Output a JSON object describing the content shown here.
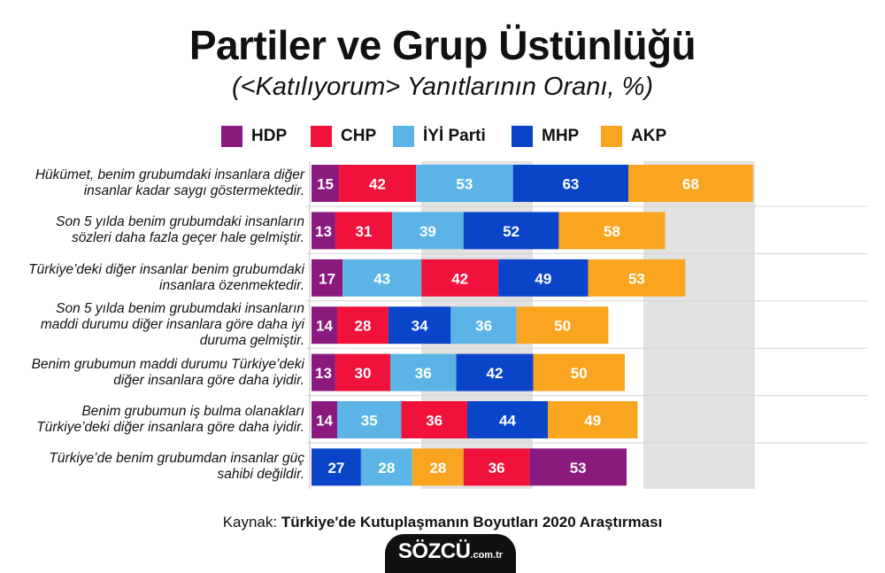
{
  "header": {
    "title": "Partiler ve Grup Üstünlüğü",
    "subtitle": "(<Katılıyorum> Yanıtlarının Oranı, %)"
  },
  "legend": [
    {
      "label": "HDP",
      "color": "#8B1A7E"
    },
    {
      "label": "CHP",
      "color": "#F0123A"
    },
    {
      "label": "İYİ Parti",
      "color": "#5BB4E5"
    },
    {
      "label": "MHP",
      "color": "#0A44C9"
    },
    {
      "label": "AKP",
      "color": "#F9A51F"
    }
  ],
  "chart_data": {
    "type": "bar",
    "stacked": true,
    "orientation": "horizontal",
    "rows": [
      {
        "label": "Hükümet, benim grubumdaki insanlara diğer insanlar kadar saygı göstermektedir.",
        "segments": [
          {
            "party": "HDP",
            "value": 15
          },
          {
            "party": "CHP",
            "value": 42
          },
          {
            "party": "İYİ Parti",
            "value": 53
          },
          {
            "party": "MHP",
            "value": 63
          },
          {
            "party": "AKP",
            "value": 68
          }
        ]
      },
      {
        "label": "Son 5 yılda benim grubumdaki insanların sözleri daha fazla geçer hale gelmiştir.",
        "segments": [
          {
            "party": "HDP",
            "value": 13
          },
          {
            "party": "CHP",
            "value": 31
          },
          {
            "party": "İYİ Parti",
            "value": 39
          },
          {
            "party": "MHP",
            "value": 52
          },
          {
            "party": "AKP",
            "value": 58
          }
        ]
      },
      {
        "label": "Türkiye’deki diğer insanlar benim grubumdaki insanlara özenmektedir.",
        "segments": [
          {
            "party": "HDP",
            "value": 17
          },
          {
            "party": "İYİ Parti",
            "value": 43
          },
          {
            "party": "CHP",
            "value": 42
          },
          {
            "party": "MHP",
            "value": 49
          },
          {
            "party": "AKP",
            "value": 53
          }
        ]
      },
      {
        "label": "Son 5 yılda benim grubumdaki insanların maddi durumu diğer insanlara göre daha iyi duruma gelmiştir.",
        "segments": [
          {
            "party": "HDP",
            "value": 14
          },
          {
            "party": "CHP",
            "value": 28
          },
          {
            "party": "MHP",
            "value": 34
          },
          {
            "party": "İYİ Parti",
            "value": 36
          },
          {
            "party": "AKP",
            "value": 50
          }
        ]
      },
      {
        "label": "Benim grubumun maddi durumu Türkiye’deki diğer insanlara göre daha iyidir.",
        "segments": [
          {
            "party": "HDP",
            "value": 13
          },
          {
            "party": "CHP",
            "value": 30
          },
          {
            "party": "İYİ Parti",
            "value": 36
          },
          {
            "party": "MHP",
            "value": 42
          },
          {
            "party": "AKP",
            "value": 50
          }
        ]
      },
      {
        "label": "Benim grubumun iş bulma olanakları Türkiye’deki diğer insanlara göre daha iyidir.",
        "segments": [
          {
            "party": "HDP",
            "value": 14
          },
          {
            "party": "İYİ Parti",
            "value": 35
          },
          {
            "party": "CHP",
            "value": 36
          },
          {
            "party": "MHP",
            "value": 44
          },
          {
            "party": "AKP",
            "value": 49
          }
        ]
      },
      {
        "label": "Türkiye’de benim grubumdan insanlar güç sahibi değildir.",
        "segments": [
          {
            "party": "MHP",
            "value": 27
          },
          {
            "party": "İYİ Parti",
            "value": 28
          },
          {
            "party": "AKP",
            "value": 28
          },
          {
            "party": "CHP",
            "value": 36
          },
          {
            "party": "HDP",
            "value": 53
          }
        ]
      }
    ],
    "grid": true
  },
  "footer": {
    "source_prefix": "Kaynak: ",
    "source_title": "Türkiye'de Kutuplaşmanın Boyutları 2020 Araştırması",
    "logo_main": "SÖZCÜ",
    "logo_suffix": ".com.tr"
  }
}
